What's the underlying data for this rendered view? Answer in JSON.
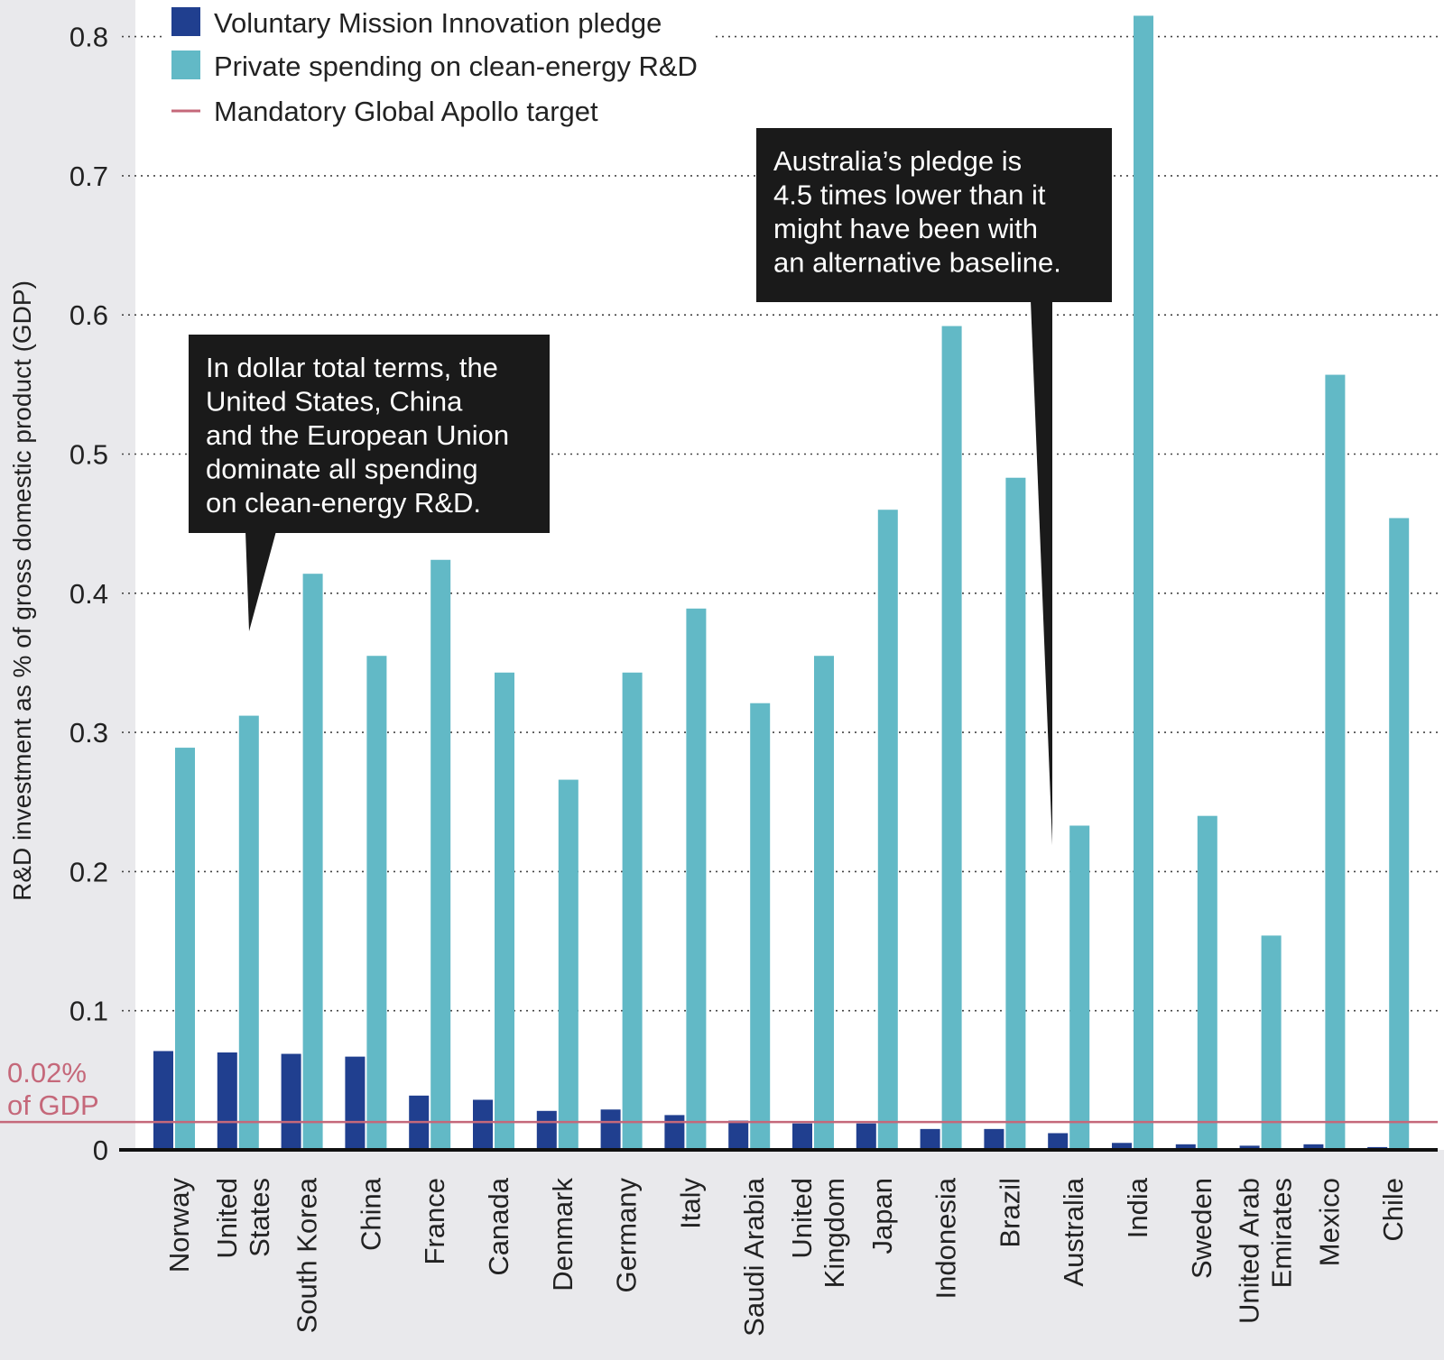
{
  "chart_data": {
    "type": "bar",
    "ylabel": "R&D investment as % of gross domestic product (GDP)",
    "ylim": [
      0,
      0.8
    ],
    "yticks": [
      "0",
      "0.1",
      "0.2",
      "0.3",
      "0.4",
      "0.5",
      "0.6",
      "0.7",
      "0.8"
    ],
    "grid": "dotted horizontal",
    "legend_position": "top-left",
    "categories": [
      "Norway",
      "United States",
      "South Korea",
      "China",
      "France",
      "Canada",
      "Denmark",
      "Germany",
      "Italy",
      "Saudi Arabia",
      "United Kingdom",
      "Japan",
      "Indonesia",
      "Brazil",
      "Australia",
      "India",
      "Sweden",
      "United Arab Emirates",
      "Mexico",
      "Chile"
    ],
    "category_label_lines": [
      [
        "Norway"
      ],
      [
        "United",
        "States"
      ],
      [
        "South Korea"
      ],
      [
        "China"
      ],
      [
        "France"
      ],
      [
        "Canada"
      ],
      [
        "Denmark"
      ],
      [
        "Germany"
      ],
      [
        "Italy"
      ],
      [
        "Saudi Arabia"
      ],
      [
        "United",
        "Kingdom"
      ],
      [
        "Japan"
      ],
      [
        "Indonesia"
      ],
      [
        "Brazil"
      ],
      [
        "Australia"
      ],
      [
        "India"
      ],
      [
        "Sweden"
      ],
      [
        "United Arab",
        "Emirates"
      ],
      [
        "Mexico"
      ],
      [
        "Chile"
      ]
    ],
    "series": [
      {
        "name": "Voluntary Mission Innovation pledge",
        "color": "#203f8f",
        "values": [
          0.071,
          0.07,
          0.069,
          0.067,
          0.039,
          0.036,
          0.028,
          0.029,
          0.025,
          0.021,
          0.019,
          0.019,
          0.015,
          0.015,
          0.012,
          0.005,
          0.004,
          0.003,
          0.004,
          0.002
        ]
      },
      {
        "name": "Private spending on clean-energy R&D",
        "color": "#62b9c6",
        "values": [
          0.289,
          0.312,
          0.414,
          0.355,
          0.424,
          0.343,
          0.266,
          0.343,
          0.389,
          0.321,
          0.355,
          0.46,
          0.592,
          0.483,
          0.233,
          0.815,
          0.24,
          0.154,
          0.557,
          0.454
        ]
      }
    ],
    "reference_line": {
      "name": "Mandatory Global Apollo target",
      "value": 0.02,
      "label_lines": [
        "0.02%",
        "of GDP"
      ],
      "color": "#c5687a"
    },
    "annotations": [
      {
        "category": "United States",
        "lines": [
          "In dollar total terms, the",
          "United States, China",
          "and the European Union",
          "dominate all spending",
          "on clean-energy R&D."
        ]
      },
      {
        "category": "Australia",
        "lines": [
          "Australia’s pledge is",
          "4.5 times lower than it",
          "might have been with",
          "an alternative baseline."
        ]
      }
    ]
  }
}
